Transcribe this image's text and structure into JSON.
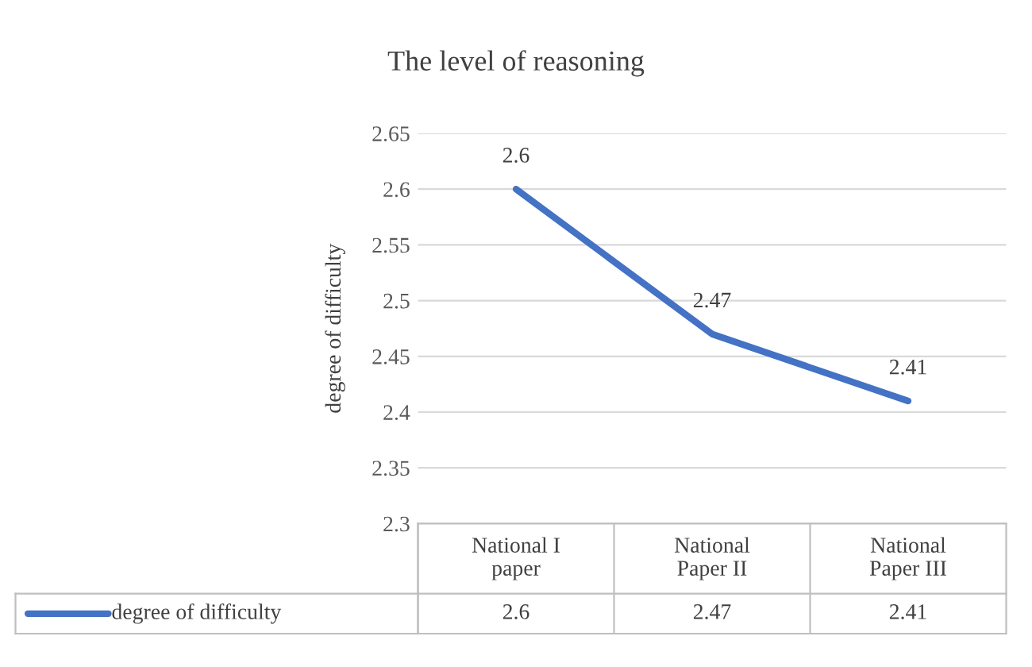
{
  "chart_data": {
    "type": "line",
    "title": "The level of reasoning",
    "ylabel": "degree of difficulty",
    "categories": [
      "National I\npaper",
      "National\nPaper II",
      "National\nPaper III"
    ],
    "series": [
      {
        "name": "degree of difficulty",
        "color": "#4472c4",
        "values": [
          2.6,
          2.47,
          2.41
        ],
        "value_labels": [
          "2.6",
          "2.47",
          "2.41"
        ]
      }
    ],
    "ylim": [
      2.3,
      2.65
    ],
    "yticks": [
      2.3,
      2.35,
      2.4,
      2.45,
      2.5,
      2.55,
      2.6,
      2.65
    ],
    "annotations": [
      "2.6",
      "2.47",
      "2.41"
    ],
    "grid": "y",
    "data_labels": true,
    "legend": "bottom",
    "marker": "none",
    "line_style": "solid"
  }
}
